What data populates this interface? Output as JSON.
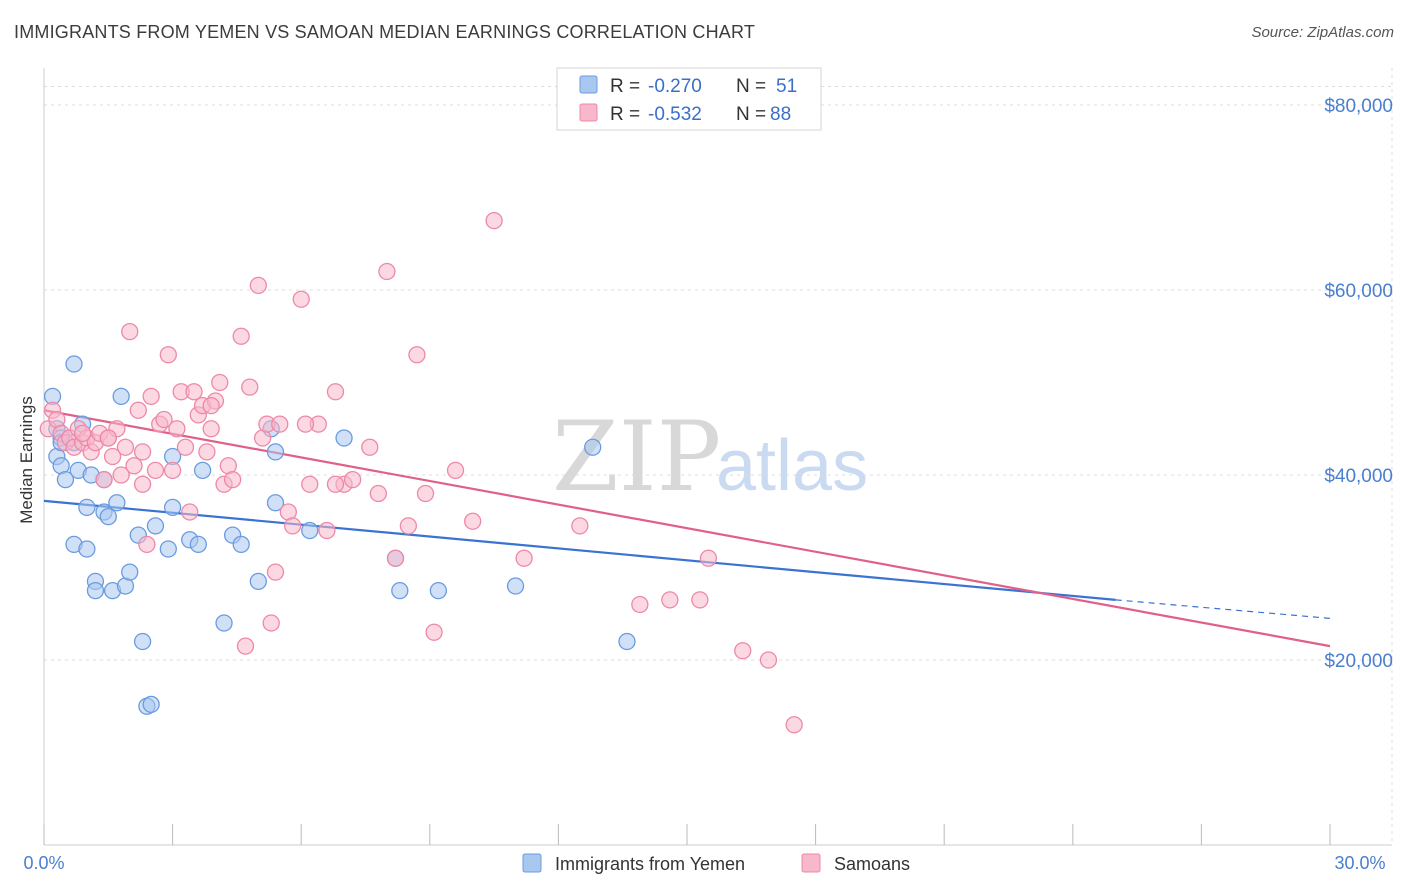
{
  "title": "IMMIGRANTS FROM YEMEN VS SAMOAN MEDIAN EARNINGS CORRELATION CHART",
  "source": "Source: ZipAtlas.com",
  "watermark": {
    "zip": "ZIP",
    "atlas": "atlas"
  },
  "legend": {
    "rows": [
      {
        "r_label": "R = ",
        "r_value": "-0.270",
        "n_label": "N = ",
        "n_value": "51",
        "color": "#a9c8f0"
      },
      {
        "r_label": "R = ",
        "r_value": "-0.532",
        "n_label": "N = ",
        "n_value": "88",
        "color": "#f7b8cb"
      }
    ]
  },
  "chart_data": {
    "type": "scatter",
    "title": "IMMIGRANTS FROM YEMEN VS SAMOAN MEDIAN EARNINGS CORRELATION CHART",
    "xlabel": "",
    "ylabel": "Median Earnings",
    "xlim": [
      0,
      30
    ],
    "ylim": [
      0,
      84000
    ],
    "x_tick_labels": [
      "0.0%",
      "30.0%"
    ],
    "y_ticks": [
      20000,
      40000,
      60000,
      80000
    ],
    "y_tick_labels": [
      "$20,000",
      "$40,000",
      "$60,000",
      "$80,000"
    ],
    "grid": true,
    "legend_position": "top-center",
    "series": [
      {
        "name": "Immigrants from Yemen",
        "color": "#6a9be0",
        "fill": "#a9c8f0",
        "trend": {
          "x": [
            0,
            25
          ],
          "y": [
            37200,
            26500
          ],
          "dashed_to": [
            30,
            24500
          ],
          "color": "#3a73d2"
        },
        "points": [
          [
            0.2,
            48500
          ],
          [
            0.3,
            42000
          ],
          [
            0.3,
            45000
          ],
          [
            0.4,
            44000
          ],
          [
            0.4,
            41000
          ],
          [
            0.5,
            39500
          ],
          [
            0.7,
            52000
          ],
          [
            0.7,
            43500
          ],
          [
            0.7,
            32500
          ],
          [
            0.8,
            40500
          ],
          [
            0.9,
            45500
          ],
          [
            1.0,
            36500
          ],
          [
            1.0,
            32000
          ],
          [
            1.1,
            40000
          ],
          [
            1.2,
            28500
          ],
          [
            1.2,
            27500
          ],
          [
            1.4,
            36000
          ],
          [
            1.4,
            39500
          ],
          [
            1.5,
            35500
          ],
          [
            1.6,
            27500
          ],
          [
            1.7,
            37000
          ],
          [
            1.8,
            48500
          ],
          [
            1.9,
            28000
          ],
          [
            2.0,
            29500
          ],
          [
            2.2,
            33500
          ],
          [
            2.3,
            22000
          ],
          [
            2.4,
            15000
          ],
          [
            2.5,
            15200
          ],
          [
            2.6,
            34500
          ],
          [
            2.9,
            32000
          ],
          [
            3.0,
            42000
          ],
          [
            3.0,
            36500
          ],
          [
            3.4,
            33000
          ],
          [
            3.6,
            32500
          ],
          [
            3.7,
            40500
          ],
          [
            4.2,
            24000
          ],
          [
            4.4,
            33500
          ],
          [
            4.6,
            32500
          ],
          [
            5.0,
            28500
          ],
          [
            5.3,
            45000
          ],
          [
            5.4,
            42500
          ],
          [
            5.4,
            37000
          ],
          [
            6.2,
            34000
          ],
          [
            7.0,
            44000
          ],
          [
            8.2,
            31000
          ],
          [
            8.3,
            27500
          ],
          [
            9.2,
            27500
          ],
          [
            11.0,
            28000
          ],
          [
            12.8,
            43000
          ],
          [
            13.6,
            22000
          ],
          [
            0.4,
            43500
          ]
        ]
      },
      {
        "name": "Samoans",
        "color": "#ee88a8",
        "fill": "#f7b8cb",
        "trend": {
          "x": [
            0,
            30
          ],
          "y": [
            47000,
            21500
          ],
          "color": "#e0608a"
        },
        "points": [
          [
            0.1,
            45000
          ],
          [
            0.2,
            47000
          ],
          [
            0.3,
            46000
          ],
          [
            0.4,
            44500
          ],
          [
            0.5,
            43500
          ],
          [
            0.6,
            44000
          ],
          [
            0.7,
            43000
          ],
          [
            0.8,
            45000
          ],
          [
            0.9,
            43500
          ],
          [
            1.0,
            44000
          ],
          [
            1.1,
            42500
          ],
          [
            1.2,
            43500
          ],
          [
            1.3,
            44500
          ],
          [
            1.4,
            39500
          ],
          [
            1.5,
            44000
          ],
          [
            1.6,
            42000
          ],
          [
            1.7,
            45000
          ],
          [
            1.8,
            40000
          ],
          [
            1.9,
            43000
          ],
          [
            2.0,
            55500
          ],
          [
            2.1,
            41000
          ],
          [
            2.2,
            47000
          ],
          [
            2.3,
            39000
          ],
          [
            2.4,
            32500
          ],
          [
            2.5,
            48500
          ],
          [
            2.6,
            40500
          ],
          [
            2.7,
            45500
          ],
          [
            2.8,
            46000
          ],
          [
            2.9,
            53000
          ],
          [
            3.0,
            40500
          ],
          [
            3.1,
            45000
          ],
          [
            3.2,
            49000
          ],
          [
            3.3,
            43000
          ],
          [
            3.4,
            36000
          ],
          [
            3.5,
            49000
          ],
          [
            3.6,
            46500
          ],
          [
            3.7,
            47500
          ],
          [
            3.8,
            42500
          ],
          [
            3.9,
            45000
          ],
          [
            4.0,
            48000
          ],
          [
            4.1,
            50000
          ],
          [
            4.2,
            39000
          ],
          [
            4.3,
            41000
          ],
          [
            4.4,
            39500
          ],
          [
            4.6,
            55000
          ],
          [
            4.7,
            21500
          ],
          [
            4.8,
            49500
          ],
          [
            5.0,
            60500
          ],
          [
            5.1,
            44000
          ],
          [
            5.2,
            45500
          ],
          [
            5.3,
            24000
          ],
          [
            5.4,
            29500
          ],
          [
            5.5,
            45500
          ],
          [
            5.7,
            36000
          ],
          [
            5.8,
            34500
          ],
          [
            6.0,
            59000
          ],
          [
            6.2,
            39000
          ],
          [
            6.4,
            45500
          ],
          [
            6.6,
            34000
          ],
          [
            6.8,
            49000
          ],
          [
            7.0,
            39000
          ],
          [
            7.2,
            39500
          ],
          [
            7.6,
            43000
          ],
          [
            7.8,
            38000
          ],
          [
            8.0,
            62000
          ],
          [
            8.2,
            31000
          ],
          [
            8.5,
            34500
          ],
          [
            8.7,
            53000
          ],
          [
            8.9,
            38000
          ],
          [
            9.1,
            23000
          ],
          [
            9.6,
            40500
          ],
          [
            10.0,
            35000
          ],
          [
            10.5,
            67500
          ],
          [
            11.2,
            31000
          ],
          [
            12.5,
            34500
          ],
          [
            13.9,
            26000
          ],
          [
            14.6,
            26500
          ],
          [
            15.3,
            26500
          ],
          [
            15.5,
            31000
          ],
          [
            16.3,
            21000
          ],
          [
            16.9,
            20000
          ],
          [
            17.5,
            13000
          ],
          [
            1.5,
            44000
          ],
          [
            3.9,
            47500
          ],
          [
            6.8,
            39000
          ],
          [
            0.9,
            44500
          ],
          [
            2.3,
            42500
          ],
          [
            6.1,
            45500
          ]
        ]
      }
    ]
  },
  "bottom_legend": [
    {
      "label": "Immigrants from Yemen",
      "color": "#a9c8f0"
    },
    {
      "label": "Samoans",
      "color": "#f7b8cb"
    }
  ]
}
